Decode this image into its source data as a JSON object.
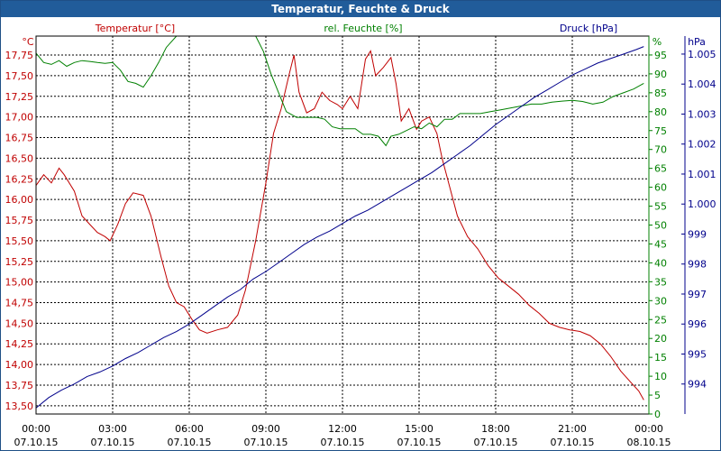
{
  "window": {
    "title": "Temperatur, Feuchte & Druck"
  },
  "colors": {
    "temperature": "#c00000",
    "humidity": "#008000",
    "pressure": "#00008b",
    "titlebar": "#215c9a",
    "grid": "#000000"
  },
  "chart_data": {
    "type": "line",
    "title": "Temperatur, Feuchte & Druck",
    "grid": true,
    "x_ticks": [
      {
        "time": "00:00",
        "date": "07.10.15"
      },
      {
        "time": "03:00",
        "date": "07.10.15"
      },
      {
        "time": "06:00",
        "date": "07.10.15"
      },
      {
        "time": "09:00",
        "date": "07.10.15"
      },
      {
        "time": "12:00",
        "date": "07.10.15"
      },
      {
        "time": "15:00",
        "date": "07.10.15"
      },
      {
        "time": "18:00",
        "date": "07.10.15"
      },
      {
        "time": "21:00",
        "date": "07.10.15"
      },
      {
        "time": "00:00",
        "date": "08.10.15"
      }
    ],
    "xlim_hours": [
      0,
      24
    ],
    "axes": {
      "left": {
        "label": "Temperatur [°C]",
        "unit": "°C",
        "color": "#c00000",
        "range": [
          13.4,
          17.98
        ],
        "ticks": [
          "17,75",
          "17,50",
          "17,25",
          "17,00",
          "16,75",
          "16,50",
          "16,25",
          "16,00",
          "15,75",
          "15,50",
          "15,25",
          "15,00",
          "14,75",
          "14,50",
          "14,25",
          "14,00",
          "13,75",
          "13,50"
        ]
      },
      "right1": {
        "label": "rel. Feuchte [%]",
        "unit": "%",
        "color": "#008000",
        "range": [
          0,
          100
        ],
        "ticks": [
          "95",
          "90",
          "85",
          "80",
          "75",
          "70",
          "65",
          "60",
          "55",
          "50",
          "45",
          "40",
          "35",
          "30",
          "25",
          "20",
          "15",
          "10",
          "5",
          "0"
        ]
      },
      "right2": {
        "label": "Druck [hPa]",
        "unit": "hPa",
        "color": "#00008b",
        "range": [
          993.0,
          1005.6
        ],
        "ticks": [
          "1.005",
          "1.004",
          "1.003",
          "1.002",
          "1.001",
          "1.000",
          "999",
          "998",
          "997",
          "996",
          "995",
          "994"
        ]
      }
    },
    "series": [
      {
        "name": "Temperatur [°C]",
        "axis": "left",
        "color": "#c00000",
        "points": [
          [
            0.0,
            16.17
          ],
          [
            0.3,
            16.3
          ],
          [
            0.6,
            16.2
          ],
          [
            0.9,
            16.38
          ],
          [
            1.1,
            16.3
          ],
          [
            1.5,
            16.1
          ],
          [
            1.8,
            15.8
          ],
          [
            2.1,
            15.7
          ],
          [
            2.4,
            15.6
          ],
          [
            2.7,
            15.55
          ],
          [
            2.9,
            15.5
          ],
          [
            3.2,
            15.7
          ],
          [
            3.5,
            15.95
          ],
          [
            3.8,
            16.08
          ],
          [
            4.2,
            16.05
          ],
          [
            4.5,
            15.8
          ],
          [
            4.9,
            15.3
          ],
          [
            5.2,
            14.95
          ],
          [
            5.5,
            14.75
          ],
          [
            5.8,
            14.7
          ],
          [
            6.1,
            14.55
          ],
          [
            6.4,
            14.42
          ],
          [
            6.7,
            14.38
          ],
          [
            7.1,
            14.42
          ],
          [
            7.5,
            14.45
          ],
          [
            7.9,
            14.6
          ],
          [
            8.2,
            14.9
          ],
          [
            8.6,
            15.5
          ],
          [
            9.0,
            16.2
          ],
          [
            9.3,
            16.8
          ],
          [
            9.6,
            17.1
          ],
          [
            9.9,
            17.5
          ],
          [
            10.1,
            17.75
          ],
          [
            10.3,
            17.3
          ],
          [
            10.6,
            17.05
          ],
          [
            10.9,
            17.1
          ],
          [
            11.2,
            17.3
          ],
          [
            11.5,
            17.2
          ],
          [
            11.8,
            17.15
          ],
          [
            12.0,
            17.1
          ],
          [
            12.3,
            17.25
          ],
          [
            12.6,
            17.1
          ],
          [
            12.9,
            17.7
          ],
          [
            13.1,
            17.8
          ],
          [
            13.3,
            17.5
          ],
          [
            13.6,
            17.6
          ],
          [
            13.9,
            17.72
          ],
          [
            14.1,
            17.4
          ],
          [
            14.3,
            16.95
          ],
          [
            14.6,
            17.1
          ],
          [
            14.9,
            16.85
          ],
          [
            15.1,
            16.95
          ],
          [
            15.4,
            17.0
          ],
          [
            15.7,
            16.8
          ],
          [
            15.9,
            16.5
          ],
          [
            16.2,
            16.15
          ],
          [
            16.5,
            15.8
          ],
          [
            16.9,
            15.55
          ],
          [
            17.3,
            15.4
          ],
          [
            17.7,
            15.2
          ],
          [
            18.1,
            15.05
          ],
          [
            18.5,
            14.95
          ],
          [
            18.9,
            14.85
          ],
          [
            19.3,
            14.72
          ],
          [
            19.7,
            14.62
          ],
          [
            20.1,
            14.5
          ],
          [
            20.5,
            14.45
          ],
          [
            20.9,
            14.42
          ],
          [
            21.3,
            14.4
          ],
          [
            21.7,
            14.35
          ],
          [
            22.1,
            14.25
          ],
          [
            22.5,
            14.1
          ],
          [
            22.9,
            13.92
          ],
          [
            23.3,
            13.78
          ],
          [
            23.6,
            13.68
          ],
          [
            23.8,
            13.57
          ]
        ]
      },
      {
        "name": "rel. Feuchte [%]",
        "axis": "right1",
        "color": "#008000",
        "points": [
          [
            0.0,
            95.5
          ],
          [
            0.3,
            93
          ],
          [
            0.6,
            92.5
          ],
          [
            0.9,
            93.5
          ],
          [
            1.2,
            92
          ],
          [
            1.5,
            93
          ],
          [
            1.8,
            93.5
          ],
          [
            2.1,
            93.3
          ],
          [
            2.4,
            93
          ],
          [
            2.7,
            92.8
          ],
          [
            3.0,
            93
          ],
          [
            3.3,
            91
          ],
          [
            3.6,
            88
          ],
          [
            3.9,
            87.5
          ],
          [
            4.2,
            86.5
          ],
          [
            4.5,
            89.5
          ],
          [
            4.8,
            93
          ],
          [
            5.1,
            97
          ],
          [
            5.5,
            100
          ],
          [
            6.0,
            101
          ],
          [
            7.0,
            101
          ],
          [
            8.0,
            101
          ],
          [
            8.6,
            100
          ],
          [
            8.9,
            96
          ],
          [
            9.2,
            90
          ],
          [
            9.5,
            85
          ],
          [
            9.8,
            80
          ],
          [
            10.2,
            78.5
          ],
          [
            10.6,
            78.5
          ],
          [
            11.0,
            78.5
          ],
          [
            11.3,
            78
          ],
          [
            11.6,
            76
          ],
          [
            11.9,
            75.5
          ],
          [
            12.2,
            75.5
          ],
          [
            12.5,
            75.5
          ],
          [
            12.8,
            74
          ],
          [
            13.1,
            74
          ],
          [
            13.4,
            73.5
          ],
          [
            13.7,
            71
          ],
          [
            13.9,
            73.5
          ],
          [
            14.2,
            74
          ],
          [
            14.5,
            75
          ],
          [
            14.8,
            76
          ],
          [
            15.1,
            75.5
          ],
          [
            15.4,
            77
          ],
          [
            15.7,
            76
          ],
          [
            16.0,
            78
          ],
          [
            16.3,
            78
          ],
          [
            16.6,
            79.5
          ],
          [
            17.0,
            79.5
          ],
          [
            17.4,
            79.5
          ],
          [
            17.8,
            80
          ],
          [
            18.2,
            80.5
          ],
          [
            18.6,
            81
          ],
          [
            19.0,
            81.5
          ],
          [
            19.4,
            82
          ],
          [
            19.8,
            82
          ],
          [
            20.2,
            82.5
          ],
          [
            20.6,
            82.8
          ],
          [
            21.0,
            83
          ],
          [
            21.4,
            82.7
          ],
          [
            21.8,
            82
          ],
          [
            22.2,
            82.5
          ],
          [
            22.6,
            84
          ],
          [
            23.0,
            85
          ],
          [
            23.4,
            86
          ],
          [
            23.8,
            87.5
          ]
        ]
      },
      {
        "name": "Druck [hPa]",
        "axis": "right2",
        "color": "#00008b",
        "points": [
          [
            0.0,
            993.2
          ],
          [
            0.5,
            993.55
          ],
          [
            1.0,
            993.8
          ],
          [
            1.5,
            994.0
          ],
          [
            2.0,
            994.25
          ],
          [
            2.5,
            994.4
          ],
          [
            3.0,
            994.6
          ],
          [
            3.5,
            994.85
          ],
          [
            4.0,
            995.05
          ],
          [
            4.5,
            995.3
          ],
          [
            5.0,
            995.55
          ],
          [
            5.5,
            995.75
          ],
          [
            6.0,
            996.0
          ],
          [
            6.5,
            996.3
          ],
          [
            7.0,
            996.6
          ],
          [
            7.5,
            996.9
          ],
          [
            8.0,
            997.15
          ],
          [
            8.5,
            997.5
          ],
          [
            9.0,
            997.75
          ],
          [
            9.5,
            998.05
          ],
          [
            10.0,
            998.35
          ],
          [
            10.5,
            998.65
          ],
          [
            11.0,
            998.9
          ],
          [
            11.5,
            999.1
          ],
          [
            12.0,
            999.35
          ],
          [
            12.5,
            999.6
          ],
          [
            13.0,
            999.8
          ],
          [
            13.5,
            1000.05
          ],
          [
            14.0,
            1000.3
          ],
          [
            14.5,
            1000.55
          ],
          [
            15.0,
            1000.8
          ],
          [
            15.5,
            1001.05
          ],
          [
            16.0,
            1001.35
          ],
          [
            16.5,
            1001.65
          ],
          [
            17.0,
            1001.95
          ],
          [
            17.5,
            1002.3
          ],
          [
            18.0,
            1002.65
          ],
          [
            18.5,
            1002.95
          ],
          [
            19.0,
            1003.25
          ],
          [
            19.5,
            1003.55
          ],
          [
            20.0,
            1003.8
          ],
          [
            20.5,
            1004.05
          ],
          [
            21.0,
            1004.3
          ],
          [
            21.5,
            1004.5
          ],
          [
            22.0,
            1004.7
          ],
          [
            22.5,
            1004.85
          ],
          [
            23.0,
            1005.0
          ],
          [
            23.5,
            1005.15
          ],
          [
            23.8,
            1005.25
          ]
        ]
      }
    ]
  }
}
